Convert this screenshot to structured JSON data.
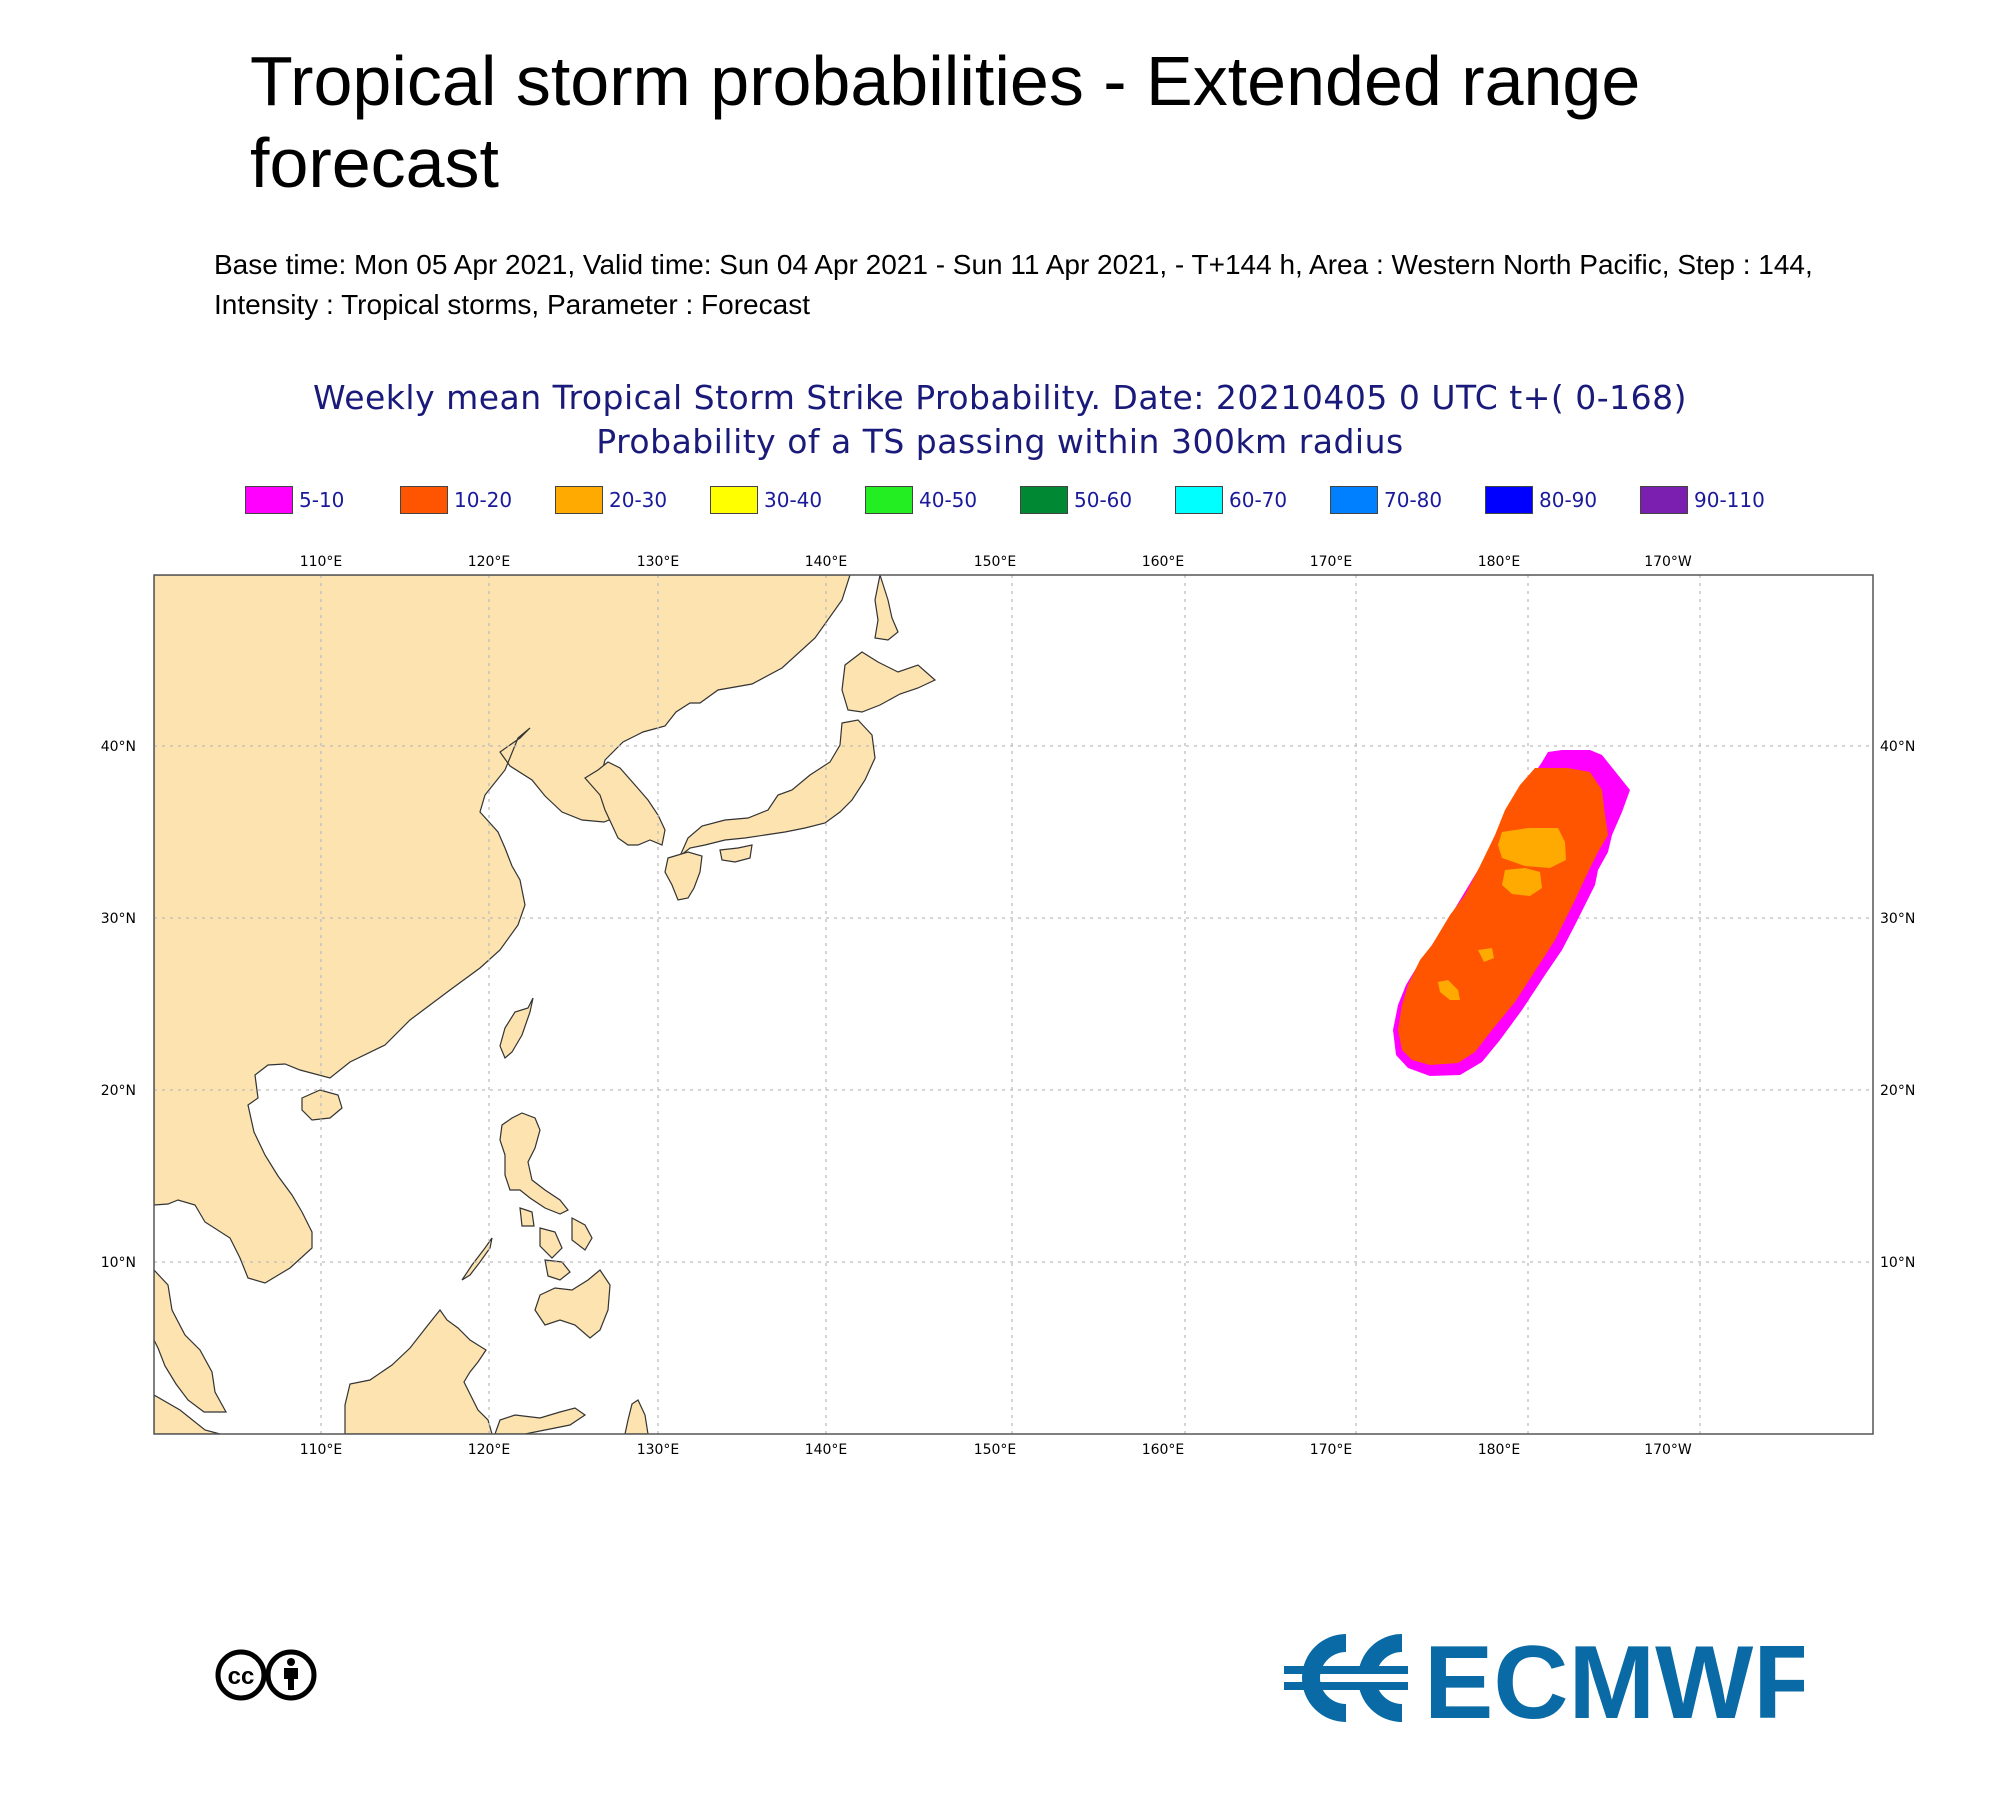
{
  "header": {
    "title": "Tropical storm probabilities - Extended range forecast",
    "subtitle": "Base time: Mon 05 Apr 2021, Valid time: Sun 04 Apr 2021 - Sun 11 Apr 2021, - T+144 h, Area : Western North Pacific, Step : 144, Intensity : Tropical storms, Parameter : Forecast"
  },
  "map": {
    "heading_line1": "Weekly mean Tropical Storm Strike Probability. Date: 20210405  0 UTC    t+(  0-168)",
    "heading_line2": "Probability of a TS passing within  300km radius",
    "legend": [
      {
        "label": "5-10",
        "color": "#ff00ff"
      },
      {
        "label": "10-20",
        "color": "#ff5500"
      },
      {
        "label": "20-30",
        "color": "#ffaa00"
      },
      {
        "label": "30-40",
        "color": "#ffff00"
      },
      {
        "label": "40-50",
        "color": "#22ee22"
      },
      {
        "label": "50-60",
        "color": "#008833"
      },
      {
        "label": "60-70",
        "color": "#00ffff"
      },
      {
        "label": "70-80",
        "color": "#0080ff"
      },
      {
        "label": "80-90",
        "color": "#0000ff"
      },
      {
        "label": "90-110",
        "color": "#7a1fb0"
      }
    ],
    "lon_labels": [
      "110°E",
      "120°E",
      "130°E",
      "140°E",
      "150°E",
      "160°E",
      "170°E",
      "180°E",
      "170°W"
    ],
    "lat_labels": [
      "40°N",
      "30°N",
      "20°N",
      "10°N"
    ],
    "extent": {
      "lon_min": 100,
      "lon_max": 202,
      "lat_min": 0,
      "lat_max": 50
    },
    "land_color": "#fce3b0",
    "probability_regions": [
      {
        "band": "5-10",
        "lon_range": [
          172.6,
          184.8
        ],
        "lat_range": [
          21.0,
          40.0
        ]
      },
      {
        "band": "10-20",
        "lon_range": [
          173.1,
          184.3
        ],
        "lat_range": [
          22.0,
          38.5
        ]
      },
      {
        "band": "20-30",
        "lon_range": [
          174.5,
          181.5
        ],
        "lat_range": [
          25.5,
          35.5
        ]
      }
    ]
  },
  "footer": {
    "cc_text": "cc",
    "org_logo_text": "ECMWF"
  }
}
